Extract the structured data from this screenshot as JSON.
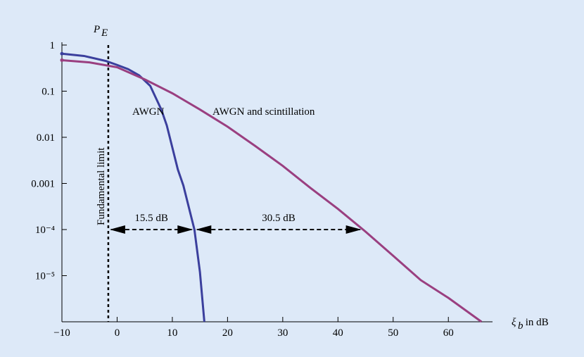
{
  "chart_data": {
    "type": "line",
    "ylabel": [
      "P",
      "E"
    ],
    "xlabel": [
      "ξ",
      "b",
      " in dB"
    ],
    "log_y": true,
    "xlim": [
      -10,
      68
    ],
    "ylim": [
      1e-06,
      1.15
    ],
    "xticks": [
      {
        "value": -10,
        "label": "−10"
      },
      0,
      10,
      20,
      30,
      40,
      50,
      60
    ],
    "yticks": [
      {
        "value": 1e-05,
        "label": "10⁻⁵"
      },
      {
        "value": 0.0001,
        "label": "10⁻⁴"
      },
      0.001,
      0.01,
      0.1,
      1
    ],
    "series": [
      {
        "name": "AWGN",
        "color": "#3b3f9d",
        "x": [
          -10,
          -6,
          -2,
          0,
          2,
          4,
          6,
          8,
          9,
          10,
          11,
          12,
          13,
          14,
          15,
          15.8
        ],
        "values": [
          0.65,
          0.58,
          0.45,
          0.37,
          0.3,
          0.22,
          0.13,
          0.04,
          0.018,
          0.006,
          0.002,
          0.0009,
          0.0003,
          0.0001,
          1.2e-05,
          1e-06
        ]
      },
      {
        "name": "AWGN and scintillation",
        "color": "#9a3f80",
        "x": [
          -10,
          -5,
          0,
          5,
          10,
          15,
          20,
          25,
          30,
          35,
          40,
          45,
          50,
          55,
          60,
          66
        ],
        "values": [
          0.47,
          0.42,
          0.33,
          0.18,
          0.09,
          0.04,
          0.017,
          0.0065,
          0.0024,
          0.0008,
          0.00028,
          9e-05,
          2.7e-05,
          8e-06,
          3.3e-06,
          1e-06
        ]
      }
    ],
    "limit": {
      "text": "Fundamental limit",
      "x": -1.6
    },
    "gaps": [
      {
        "text": "15.5 dB",
        "x": [
          -1.6,
          14
        ],
        "y": 0.0001
      },
      {
        "text": "30.5 dB",
        "x": [
          14,
          44.5
        ],
        "y": 0.0001
      }
    ]
  }
}
